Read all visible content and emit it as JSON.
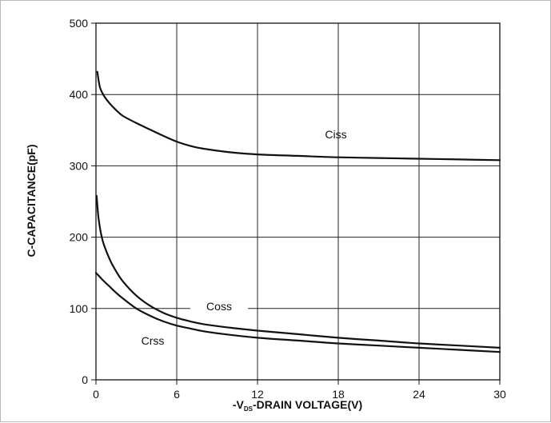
{
  "chart_data": {
    "type": "line",
    "xlabel_prefix": "-V",
    "xlabel_subscript": "DS",
    "xlabel_suffix": "-DRAIN VOLTAGE(V)",
    "ylabel": "C-CAPACITANCE(pF)",
    "xlim": [
      0,
      30
    ],
    "ylim": [
      0,
      500
    ],
    "x_ticks": [
      0,
      6,
      12,
      18,
      24,
      30
    ],
    "y_ticks": [
      0,
      100,
      200,
      300,
      400,
      500
    ],
    "grid": true,
    "series": [
      {
        "name": "Ciss",
        "x": [
          0.1,
          0.3,
          0.6,
          1,
          1.5,
          2,
          3,
          4,
          5,
          6,
          7,
          8,
          10,
          12,
          15,
          18,
          21,
          24,
          27,
          30
        ],
        "values": [
          432,
          410,
          398,
          388,
          378,
          370,
          360,
          351,
          342,
          334,
          328,
          324,
          319,
          316,
          314,
          312,
          311,
          310,
          309,
          308
        ]
      },
      {
        "name": "Coss",
        "x": [
          0.05,
          0.2,
          0.5,
          1,
          1.5,
          2,
          3,
          4,
          5,
          6,
          7,
          8,
          10,
          12,
          15,
          18,
          21,
          24,
          27,
          30
        ],
        "values": [
          258,
          225,
          195,
          170,
          152,
          138,
          118,
          104,
          94,
          87,
          82,
          78,
          73,
          69,
          64,
          59,
          55,
          51,
          48,
          45
        ]
      },
      {
        "name": "Crss",
        "x": [
          0,
          0.5,
          1,
          1.5,
          2,
          3,
          4,
          5,
          6,
          7,
          8,
          10,
          12,
          15,
          18,
          21,
          24,
          27,
          30
        ],
        "values": [
          150,
          140,
          131,
          122,
          114,
          100,
          90,
          82,
          76,
          72,
          68,
          63,
          59,
          55,
          51,
          48,
          45,
          42,
          39
        ]
      }
    ]
  }
}
